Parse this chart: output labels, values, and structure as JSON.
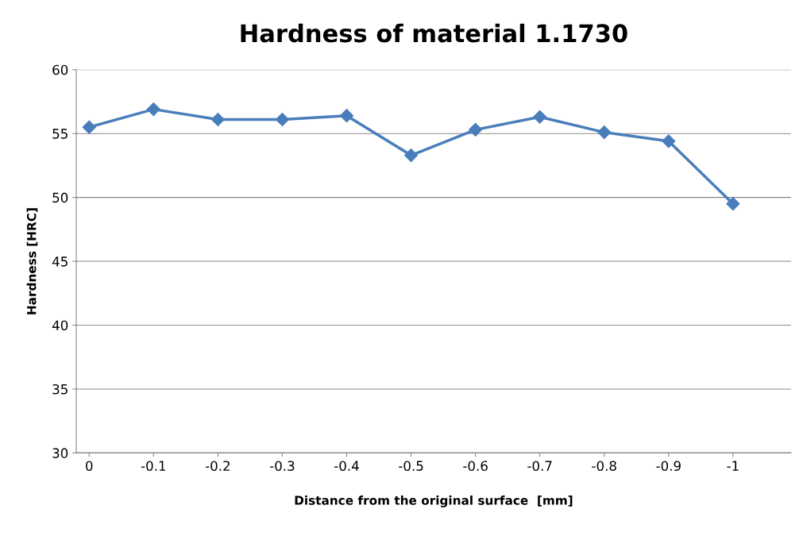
{
  "chart_data": {
    "type": "line",
    "title": "Hardness of material 1.1730",
    "xlabel": "Distance from the original surface  [mm]",
    "ylabel": "Hardness [HRC]",
    "categories": [
      "0",
      "-0.1",
      "-0.2",
      "-0.3",
      "-0.4",
      "-0.5",
      "-0.6",
      "-0.7",
      "-0.8",
      "-0.9",
      "-1"
    ],
    "series": [
      {
        "color": "#4a7ebb",
        "values": [
          55.5,
          56.9,
          56.1,
          56.1,
          56.4,
          53.3,
          55.3,
          56.3,
          55.1,
          54.4,
          49.5
        ]
      }
    ],
    "ylim": [
      30,
      60
    ],
    "yticks": [
      30,
      35,
      40,
      45,
      50,
      55,
      60
    ],
    "grid": "y",
    "marker": "diamond",
    "line_style": "solid"
  }
}
